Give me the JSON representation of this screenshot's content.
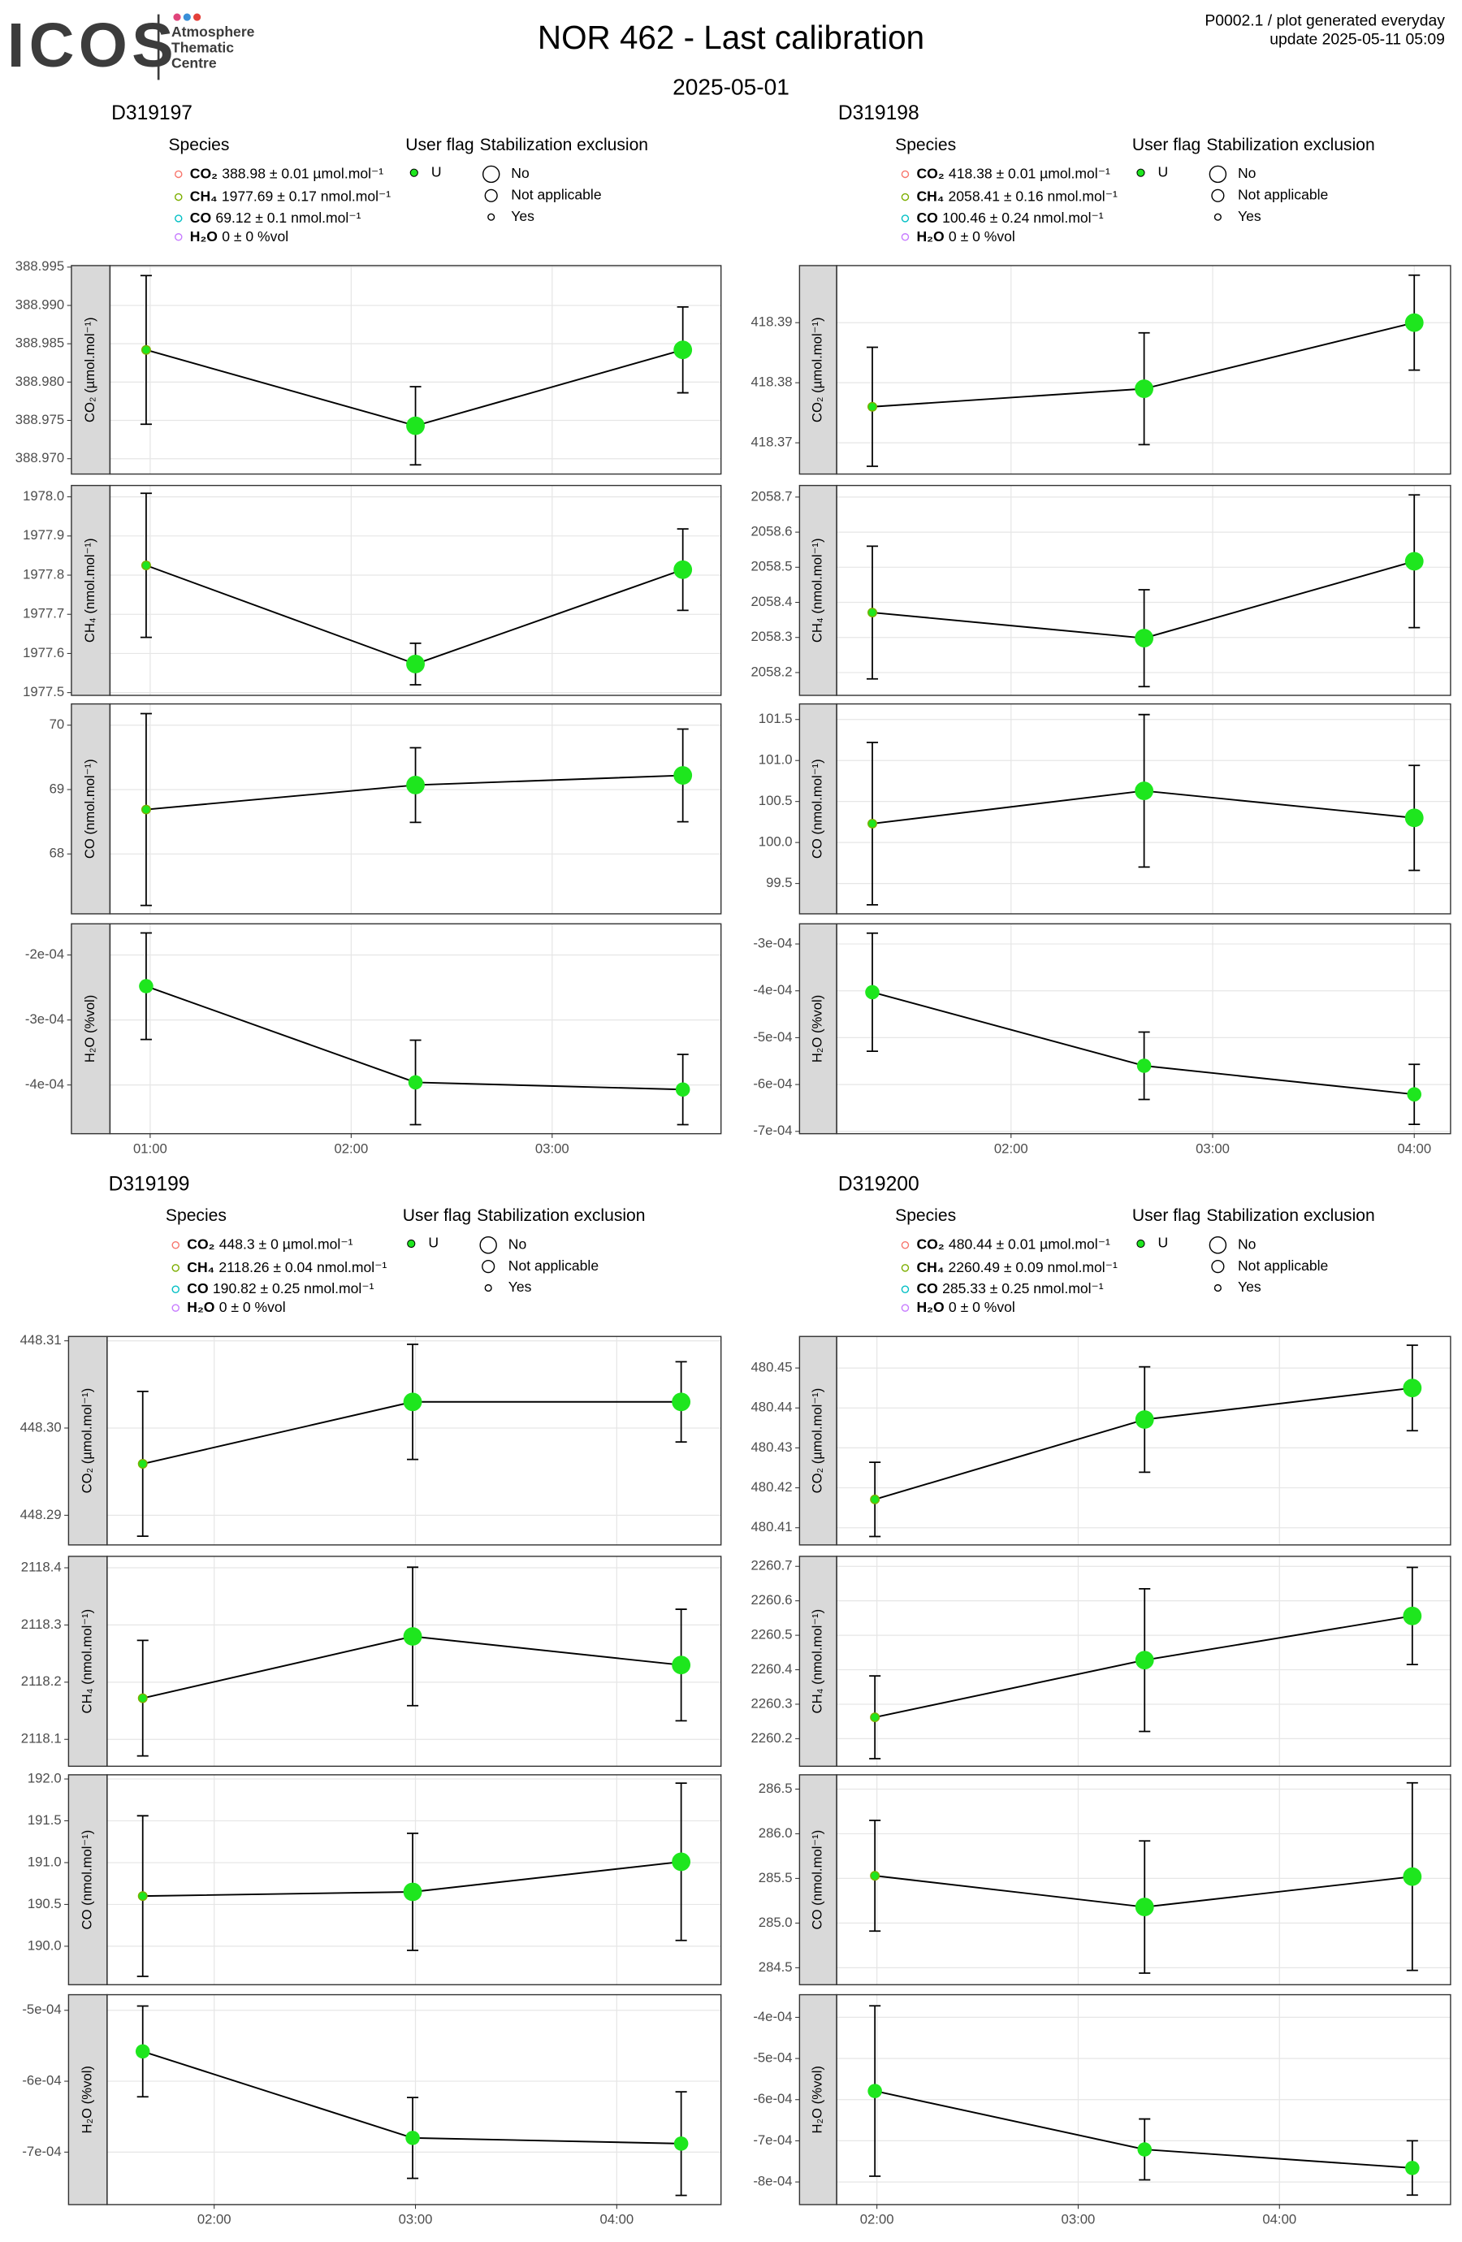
{
  "header": {
    "logo": "ICOS",
    "logo_lines": [
      "Atmosphere",
      "Thematic",
      "Centre"
    ],
    "title": "NOR 462 - Last calibration",
    "subtitle": "2025-05-01",
    "info": [
      "P0002.1 / plot generated everyday",
      "update  2025-05-11 05:09"
    ]
  },
  "chart_data": [
    {
      "type": "scatter",
      "title": "D319197",
      "legend": {
        "species_title": "Species",
        "species": [
          {
            "name": "CO₂",
            "text": "388.98 ± 0.01 µmol.mol⁻¹",
            "color": "#f8766d"
          },
          {
            "name": "CH₄",
            "text": "1977.69 ± 0.17 nmol.mol⁻¹",
            "color": "#7cae00"
          },
          {
            "name": "CO",
            "text": "69.12 ± 0.1 nmol.mol⁻¹",
            "color": "#00bfc4"
          },
          {
            "name": "H₂O",
            "text": "0 ± 0 %vol",
            "color": "#c77cff"
          }
        ],
        "flag_title": "User flag",
        "flags": [
          {
            "label": "U",
            "color": "#1ee61e"
          }
        ],
        "exclusion_title": "Stabilization exclusion",
        "exclusions": [
          "No",
          "Not applicable",
          "Yes"
        ]
      },
      "xlim": [
        0.8,
        3.84
      ],
      "xticks": [
        {
          "value": 1,
          "label": "01:00"
        },
        {
          "value": 2,
          "label": "02:00"
        },
        {
          "value": 3,
          "label": "03:00"
        }
      ],
      "x": [
        0.98,
        2.32,
        3.65
      ],
      "facets": [
        {
          "label": "CO₂ (µmol.mol⁻¹)",
          "ylim": [
            388.968,
            388.9952
          ],
          "yticks": [
            {
              "value": 388.97,
              "label": "388.970"
            },
            388.975,
            {
              "value": 388.98,
              "label": "388.980"
            },
            388.985,
            {
              "value": 388.99,
              "label": "388.990"
            },
            388.995
          ],
          "values": [
            388.9842,
            388.9743,
            388.9842
          ],
          "errors": [
            0.0097,
            0.0051,
            0.0056
          ],
          "exclusion": [
            "Yes",
            "No",
            "No"
          ]
        },
        {
          "label": "CH₄ (nmol.mol⁻¹)",
          "ylim": [
            1977.493,
            1978.029
          ],
          "yticks": [
            1977.5,
            1977.6,
            1977.7,
            1977.8,
            1977.9,
            {
              "value": 1978,
              "label": "1978.0"
            }
          ],
          "values": [
            1977.825,
            1977.573,
            1977.814
          ],
          "errors": [
            0.184,
            0.053,
            0.104
          ],
          "exclusion": [
            "Yes",
            "No",
            "No"
          ]
        },
        {
          "label": "CO (nmol.mol⁻¹)",
          "ylim": [
            67.07,
            70.33
          ],
          "yticks": [
            68,
            69,
            70
          ],
          "values": [
            68.69,
            69.07,
            69.22
          ],
          "errors": [
            1.49,
            0.58,
            0.72
          ],
          "exclusion": [
            "Yes",
            "No",
            "No"
          ]
        },
        {
          "label": "H₂O (%vol)",
          "ylim": [
            -0.000475,
            -0.000152
          ],
          "yticks": [
            {
              "value": -0.0004,
              "label": "-4e-04"
            },
            {
              "value": -0.0003,
              "label": "-3e-04"
            },
            {
              "value": -0.0002,
              "label": "-2e-04"
            }
          ],
          "values": [
            -0.000248,
            -0.000396,
            -0.000407
          ],
          "errors": [
            8.2e-05,
            6.5e-05,
            5.4e-05
          ],
          "exclusion": [
            "Not applicable",
            "Not applicable",
            "Not applicable"
          ]
        }
      ]
    },
    {
      "type": "scatter",
      "title": "D319198",
      "legend": {
        "species_title": "Species",
        "species": [
          {
            "name": "CO₂",
            "text": "418.38 ± 0.01 µmol.mol⁻¹",
            "color": "#f8766d"
          },
          {
            "name": "CH₄",
            "text": "2058.41 ± 0.16 nmol.mol⁻¹",
            "color": "#7cae00"
          },
          {
            "name": "CO",
            "text": "100.46 ± 0.24 nmol.mol⁻¹",
            "color": "#00bfc4"
          },
          {
            "name": "H₂O",
            "text": "0 ± 0 %vol",
            "color": "#c77cff"
          }
        ],
        "flag_title": "User flag",
        "flags": [
          {
            "label": "U",
            "color": "#1ee61e"
          }
        ],
        "exclusion_title": "Stabilization exclusion",
        "exclusions": [
          "No",
          "Not applicable",
          "Yes"
        ]
      },
      "xlim": [
        1.135,
        4.18
      ],
      "xticks": [
        {
          "value": 2,
          "label": "02:00"
        },
        {
          "value": 3,
          "label": "03:00"
        },
        {
          "value": 4,
          "label": "04:00"
        }
      ],
      "x": [
        1.312,
        2.66,
        4.0
      ],
      "facets": [
        {
          "label": "CO₂ (µmol.mol⁻¹)",
          "ylim": [
            418.3648,
            418.3995
          ],
          "yticks": [
            418.37,
            418.38,
            418.39
          ],
          "values": [
            418.376,
            418.379,
            418.39
          ],
          "errors": [
            0.0099,
            0.0093,
            0.0079
          ],
          "exclusion": [
            "Yes",
            "No",
            "No"
          ]
        },
        {
          "label": "CH₄ (nmol.mol⁻¹)",
          "ylim": [
            2058.135,
            2058.733
          ],
          "yticks": [
            2058.2,
            2058.3,
            2058.4,
            2058.5,
            2058.6,
            2058.7
          ],
          "values": [
            2058.371,
            2058.298,
            2058.517
          ],
          "errors": [
            0.189,
            0.138,
            0.189
          ],
          "exclusion": [
            "Yes",
            "No",
            "No"
          ]
        },
        {
          "label": "CO (nmol.mol⁻¹)",
          "ylim": [
            99.13,
            101.69
          ],
          "yticks": [
            99.5,
            {
              "value": 100,
              "label": "100.0"
            },
            100.5,
            {
              "value": 101,
              "label": "101.0"
            },
            101.5
          ],
          "values": [
            100.23,
            100.63,
            100.3
          ],
          "errors": [
            0.99,
            0.93,
            0.64
          ],
          "exclusion": [
            "Yes",
            "No",
            "No"
          ]
        },
        {
          "label": "H₂O (%vol)",
          "ylim": [
            -0.000705,
            -0.000257
          ],
          "yticks": [
            {
              "value": -0.0007,
              "label": "-7e-04"
            },
            {
              "value": -0.0006,
              "label": "-6e-04"
            },
            {
              "value": -0.0005,
              "label": "-5e-04"
            },
            {
              "value": -0.0004,
              "label": "-4e-04"
            },
            {
              "value": -0.0003,
              "label": "-3e-04"
            }
          ],
          "values": [
            -0.000403,
            -0.00056,
            -0.000621
          ],
          "errors": [
            0.000126,
            7.2e-05,
            6.4e-05
          ],
          "exclusion": [
            "Not applicable",
            "Not applicable",
            "Not applicable"
          ]
        }
      ]
    },
    {
      "type": "scatter",
      "title": "D319199",
      "legend": {
        "species_title": "Species",
        "species": [
          {
            "name": "CO₂",
            "text": "448.3 ± 0 µmol.mol⁻¹",
            "color": "#f8766d"
          },
          {
            "name": "CH₄",
            "text": "2118.26 ± 0.04 nmol.mol⁻¹",
            "color": "#7cae00"
          },
          {
            "name": "CO",
            "text": "190.82 ± 0.25 nmol.mol⁻¹",
            "color": "#00bfc4"
          },
          {
            "name": "H₂O",
            "text": "0 ± 0 %vol",
            "color": "#c77cff"
          }
        ],
        "flag_title": "User flag",
        "flags": [
          {
            "label": "U",
            "color": "#1ee61e"
          }
        ],
        "exclusion_title": "Stabilization exclusion",
        "exclusions": [
          "No",
          "Not applicable",
          "Yes"
        ]
      },
      "xlim": [
        1.468,
        4.518
      ],
      "xticks": [
        {
          "value": 2,
          "label": "02:00"
        },
        {
          "value": 3,
          "label": "03:00"
        },
        {
          "value": 4,
          "label": "04:00"
        }
      ],
      "x": [
        1.645,
        2.986,
        4.32
      ],
      "facets": [
        {
          "label": "CO₂ (µmol.mol⁻¹)",
          "ylim": [
            448.2866,
            448.3105
          ],
          "yticks": [
            448.29,
            {
              "value": 448.3,
              "label": "448.30"
            },
            448.31
          ],
          "values": [
            448.2959,
            448.303,
            448.303
          ],
          "errors": [
            0.0083,
            0.0066,
            0.0046
          ],
          "exclusion": [
            "Yes",
            "No",
            "No"
          ]
        },
        {
          "label": "CH₄ (nmol.mol⁻¹)",
          "ylim": [
            2118.053,
            2118.42
          ],
          "yticks": [
            2118.1,
            2118.2,
            2118.3,
            2118.4
          ],
          "values": [
            2118.172,
            2118.28,
            2118.23
          ],
          "errors": [
            0.101,
            0.121,
            0.0975
          ],
          "exclusion": [
            "Yes",
            "No",
            "No"
          ]
        },
        {
          "label": "CO (nmol.mol⁻¹)",
          "ylim": [
            189.54,
            192.05
          ],
          "yticks": [
            {
              "value": 190,
              "label": "190.0"
            },
            190.5,
            {
              "value": 191,
              "label": "191.0"
            },
            191.5,
            {
              "value": 192,
              "label": "192.0"
            }
          ],
          "values": [
            190.6,
            190.65,
            191.01
          ],
          "errors": [
            0.96,
            0.7,
            0.94
          ],
          "exclusion": [
            "Yes",
            "No",
            "No"
          ]
        },
        {
          "label": "H₂O (%vol)",
          "ylim": [
            -0.000774,
            -0.000478
          ],
          "yticks": [
            {
              "value": -0.0007,
              "label": "-7e-04"
            },
            {
              "value": -0.0006,
              "label": "-6e-04"
            },
            {
              "value": -0.0005,
              "label": "-5e-04"
            }
          ],
          "values": [
            -0.000558,
            -0.00068,
            -0.000688
          ],
          "errors": [
            6.4e-05,
            5.7e-05,
            7.3e-05
          ],
          "exclusion": [
            "Not applicable",
            "Not applicable",
            "Not applicable"
          ]
        }
      ]
    },
    {
      "type": "scatter",
      "title": "D319200",
      "legend": {
        "species_title": "Species",
        "species": [
          {
            "name": "CO₂",
            "text": "480.44 ± 0.01 µmol.mol⁻¹",
            "color": "#f8766d"
          },
          {
            "name": "CH₄",
            "text": "2260.49 ± 0.09 nmol.mol⁻¹",
            "color": "#7cae00"
          },
          {
            "name": "CO",
            "text": "285.33 ± 0.25 nmol.mol⁻¹",
            "color": "#00bfc4"
          },
          {
            "name": "H₂O",
            "text": "0 ± 0 %vol",
            "color": "#c77cff"
          }
        ],
        "flag_title": "User flag",
        "flags": [
          {
            "label": "U",
            "color": "#1ee61e"
          }
        ],
        "exclusion_title": "Stabilization exclusion",
        "exclusions": [
          "No",
          "Not applicable",
          "Yes"
        ]
      },
      "xlim": [
        1.8,
        4.85
      ],
      "xticks": [
        {
          "value": 2,
          "label": "02:00"
        },
        {
          "value": 3,
          "label": "03:00"
        },
        {
          "value": 4,
          "label": "04:00"
        }
      ],
      "x": [
        1.99,
        3.33,
        4.66
      ],
      "facets": [
        {
          "label": "CO₂ (µmol.mol⁻¹)",
          "ylim": [
            480.4057,
            480.4579
          ],
          "yticks": [
            480.41,
            480.42,
            480.43,
            480.44,
            480.45
          ],
          "values": [
            480.4171,
            480.4371,
            480.445
          ],
          "errors": [
            0.0093,
            0.0132,
            0.0107
          ],
          "exclusion": [
            "Yes",
            "No",
            "No"
          ]
        },
        {
          "label": "CH₄ (nmol.mol⁻¹)",
          "ylim": [
            2260.12,
            2260.729
          ],
          "yticks": [
            2260.2,
            2260.3,
            2260.4,
            2260.5,
            2260.6,
            2260.7
          ],
          "values": [
            2260.262,
            2260.428,
            2260.556
          ],
          "errors": [
            0.12,
            0.207,
            0.141
          ],
          "exclusion": [
            "Yes",
            "No",
            "No"
          ]
        },
        {
          "label": "CO (nmol.mol⁻¹)",
          "ylim": [
            284.31,
            286.66
          ],
          "yticks": [
            284.5,
            {
              "value": 285,
              "label": "285.0"
            },
            285.5,
            {
              "value": 286,
              "label": "286.0"
            },
            286.5
          ],
          "values": [
            285.53,
            285.18,
            285.52
          ],
          "errors": [
            0.62,
            0.74,
            1.05
          ],
          "exclusion": [
            "Yes",
            "No",
            "No"
          ]
        },
        {
          "label": "H₂O (%vol)",
          "ylim": [
            -0.000855,
            -0.000345
          ],
          "yticks": [
            {
              "value": -0.0008,
              "label": "-8e-04"
            },
            {
              "value": -0.0007,
              "label": "-7e-04"
            },
            {
              "value": -0.0006,
              "label": "-6e-04"
            },
            {
              "value": -0.0005,
              "label": "-5e-04"
            },
            {
              "value": -0.0004,
              "label": "-4e-04"
            }
          ],
          "values": [
            -0.000579,
            -0.000721,
            -0.000766
          ],
          "errors": [
            0.000207,
            7.4e-05,
            6.6e-05
          ],
          "exclusion": [
            "Not applicable",
            "Not applicable",
            "Not applicable"
          ]
        }
      ]
    }
  ]
}
